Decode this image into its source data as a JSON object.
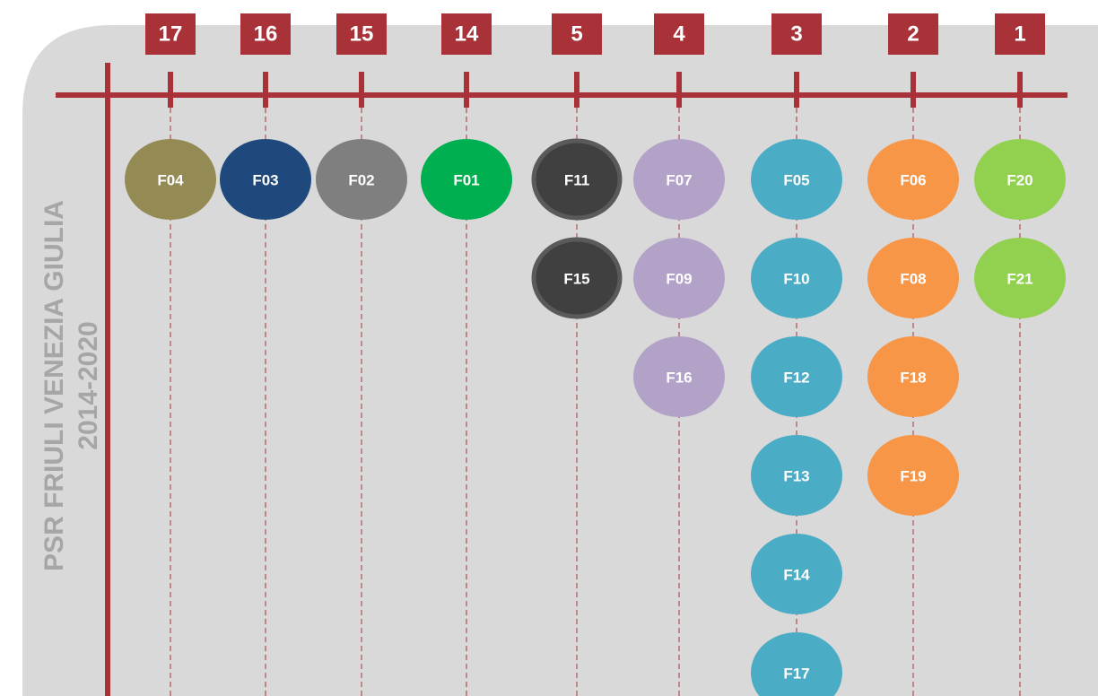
{
  "title": "PSR FRIULI VENEZIA GIULIA",
  "subtitle": "2014-2020",
  "columns": [
    {
      "label": "17",
      "color": "#948a54",
      "nodes": [
        "F04"
      ]
    },
    {
      "label": "16",
      "color": "#1f497d",
      "nodes": [
        "F03"
      ]
    },
    {
      "label": "15",
      "color": "#7f7f7f",
      "nodes": [
        "F02"
      ]
    },
    {
      "label": "14",
      "color": "#00b050",
      "nodes": [
        "F01"
      ]
    },
    {
      "label": "5",
      "color": "#404040",
      "nodes": [
        "F11",
        "F15"
      ]
    },
    {
      "label": "4",
      "color": "#b3a2c7",
      "nodes": [
        "F07",
        "F09",
        "F16"
      ]
    },
    {
      "label": "3",
      "color": "#4bacc6",
      "nodes": [
        "F05",
        "F10",
        "F12",
        "F13",
        "F14",
        "F17"
      ]
    },
    {
      "label": "2",
      "color": "#f79646",
      "nodes": [
        "F06",
        "F08",
        "F18",
        "F19"
      ]
    },
    {
      "label": "1",
      "color": "#92d050",
      "nodes": [
        "F20",
        "F21"
      ]
    }
  ]
}
